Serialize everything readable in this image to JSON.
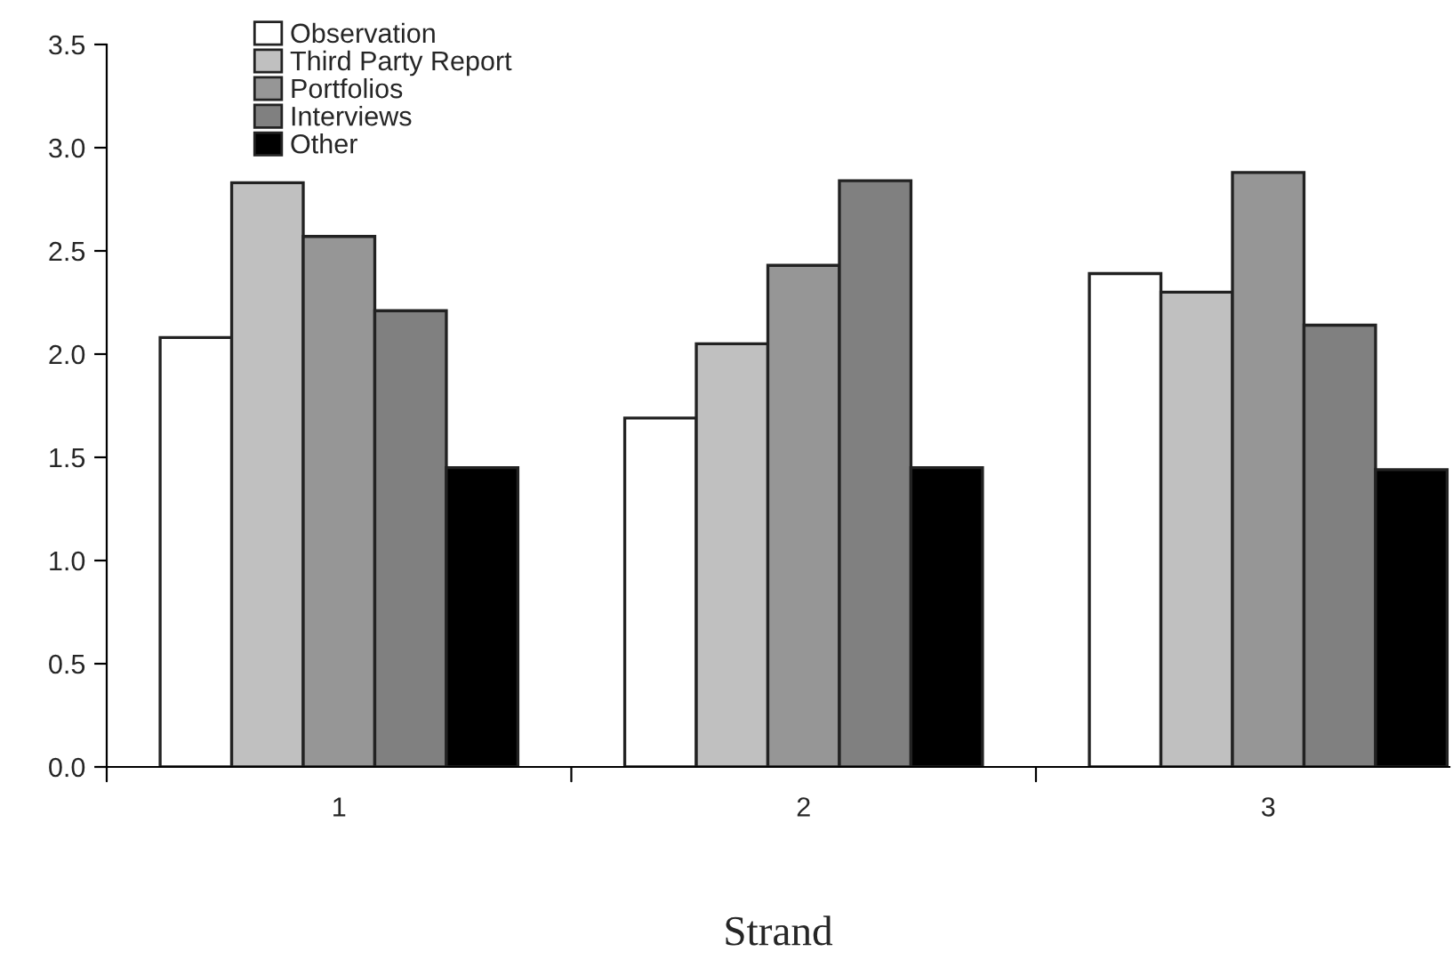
{
  "chart_data": {
    "type": "bar",
    "xlabel": "Strand",
    "categories": [
      "1",
      "2",
      "3"
    ],
    "series": [
      {
        "name": "Observation",
        "color": "#ffffff",
        "values": [
          2.08,
          1.69,
          2.39
        ]
      },
      {
        "name": "Third Party Report",
        "color": "#c0c0c0",
        "values": [
          2.83,
          2.05,
          2.3
        ]
      },
      {
        "name": "Portfolios",
        "color": "#969696",
        "values": [
          2.57,
          2.43,
          2.88
        ]
      },
      {
        "name": "Interviews",
        "color": "#808080",
        "values": [
          2.21,
          2.84,
          2.14
        ]
      },
      {
        "name": "Other",
        "color": "#000000",
        "values": [
          1.45,
          1.45,
          1.44
        ]
      }
    ],
    "ylim": [
      0,
      3.5
    ],
    "yticks": [
      {
        "value": 0,
        "label": "0.0"
      },
      {
        "value": 0.5,
        "label": "0.5"
      },
      {
        "value": 1,
        "label": "1.0"
      },
      {
        "value": 1.5,
        "label": "1.5"
      },
      {
        "value": 2,
        "label": "2.0"
      },
      {
        "value": 2.5,
        "label": "2.5"
      },
      {
        "value": 3,
        "label": "3.0"
      },
      {
        "value": 3.5,
        "label": "3.5"
      }
    ],
    "grid": false,
    "legend": "top left"
  }
}
